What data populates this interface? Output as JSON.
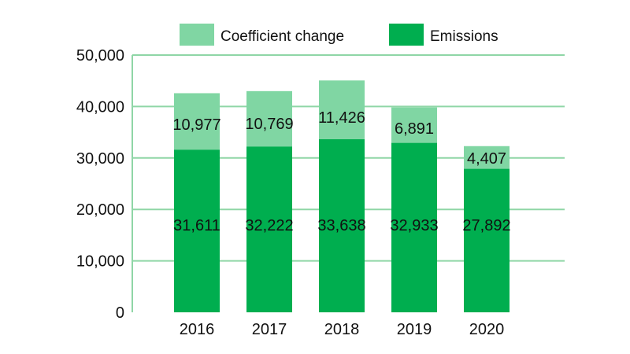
{
  "chart_data": {
    "type": "bar",
    "stacked": true,
    "categories": [
      "2016",
      "2017",
      "2018",
      "2019",
      "2020"
    ],
    "series": [
      {
        "name": "Emissions",
        "values": [
          31611,
          32222,
          33638,
          32933,
          27892
        ],
        "color": "#00ae4f"
      },
      {
        "name": "Coefficient change",
        "values": [
          10977,
          10769,
          11426,
          6891,
          4407
        ],
        "color": "#80d6a3"
      }
    ],
    "value_labels": {
      "Emissions": [
        "31,611",
        "32,222",
        "33,638",
        "32,933",
        "27,892"
      ],
      "Coefficient change": [
        "10,977",
        "10,769",
        "11,426",
        "6,891",
        "4,407"
      ]
    },
    "legend_order": [
      "Coefficient change",
      "Emissions"
    ],
    "y_ticks": [
      0,
      10000,
      20000,
      30000,
      40000,
      50000
    ],
    "y_tick_labels": [
      "0",
      "10,000",
      "20,000",
      "30,000",
      "40,000",
      "50,000"
    ],
    "ylim": [
      0,
      50000
    ],
    "grid": true,
    "grid_color": "#8fd6a6",
    "legend_position": "top",
    "title": "",
    "xlabel": "",
    "ylabel": ""
  }
}
